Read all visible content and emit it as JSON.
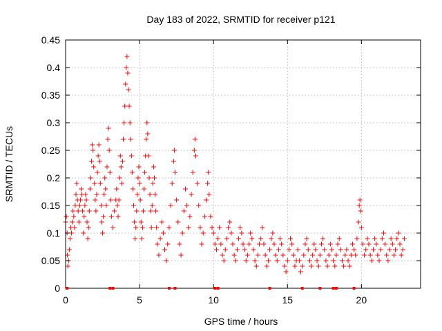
{
  "chart_data": {
    "type": "scatter",
    "title": "Day 183 of 2022, SRMTID for receiver p121",
    "xlabel": "GPS time / hours",
    "ylabel": "SRMTID / TECUs",
    "xlim": [
      0,
      24
    ],
    "ylim": [
      0,
      0.45
    ],
    "grid": true,
    "marker": "+",
    "color": "#ff0000",
    "x_ticks": [
      0,
      5,
      10,
      15,
      20
    ],
    "y_ticks": [
      0,
      0.05,
      0.1,
      0.15,
      0.2,
      0.25,
      0.3,
      0.35,
      0.4,
      0.45
    ],
    "series": [
      {
        "name": "SRMTID",
        "points": [
          [
            0.0,
            0.12
          ],
          [
            0.05,
            0.13
          ],
          [
            0.1,
            0.1
          ],
          [
            0.12,
            0.06
          ],
          [
            0.15,
            0.04
          ],
          [
            0.2,
            0.05
          ],
          [
            0.25,
            0.07
          ],
          [
            0.3,
            0.09
          ],
          [
            0.35,
            0.11
          ],
          [
            0.4,
            0.1
          ],
          [
            0.45,
            0.12
          ],
          [
            0.5,
            0.14
          ],
          [
            0.55,
            0.13
          ],
          [
            0.6,
            0.11
          ],
          [
            0.65,
            0.15
          ],
          [
            0.7,
            0.17
          ],
          [
            0.75,
            0.19
          ],
          [
            0.8,
            0.16
          ],
          [
            0.85,
            0.14
          ],
          [
            0.9,
            0.12
          ],
          [
            0.95,
            0.15
          ],
          [
            1.0,
            0.16
          ],
          [
            1.05,
            0.18
          ],
          [
            1.1,
            0.17
          ],
          [
            1.15,
            0.14
          ],
          [
            1.2,
            0.1
          ],
          [
            1.25,
            0.13
          ],
          [
            1.3,
            0.15
          ],
          [
            1.35,
            0.17
          ],
          [
            1.4,
            0.16
          ],
          [
            1.45,
            0.12
          ],
          [
            1.5,
            0.09
          ],
          [
            1.55,
            0.11
          ],
          [
            1.6,
            0.14
          ],
          [
            1.65,
            0.18
          ],
          [
            1.7,
            0.2
          ],
          [
            1.75,
            0.23
          ],
          [
            1.8,
            0.26
          ],
          [
            1.85,
            0.25
          ],
          [
            1.9,
            0.22
          ],
          [
            1.95,
            0.19
          ],
          [
            2.0,
            0.16
          ],
          [
            2.05,
            0.14
          ],
          [
            2.1,
            0.17
          ],
          [
            2.15,
            0.21
          ],
          [
            2.2,
            0.24
          ],
          [
            2.25,
            0.26
          ],
          [
            2.3,
            0.23
          ],
          [
            2.35,
            0.19
          ],
          [
            2.4,
            0.15
          ],
          [
            2.45,
            0.12
          ],
          [
            2.5,
            0.1
          ],
          [
            2.55,
            0.13
          ],
          [
            2.6,
            0.17
          ],
          [
            2.65,
            0.2
          ],
          [
            2.7,
            0.18
          ],
          [
            2.75,
            0.15
          ],
          [
            2.8,
            0.22
          ],
          [
            2.85,
            0.27
          ],
          [
            2.9,
            0.29
          ],
          [
            2.95,
            0.25
          ],
          [
            3.0,
            0.21
          ],
          [
            3.05,
            0.16
          ],
          [
            3.1,
            0.13
          ],
          [
            3.2,
            0.11
          ],
          [
            3.3,
            0.14
          ],
          [
            3.4,
            0.16
          ],
          [
            3.45,
            0.18
          ],
          [
            3.5,
            0.15
          ],
          [
            3.55,
            0.13
          ],
          [
            3.6,
            0.16
          ],
          [
            3.65,
            0.2
          ],
          [
            3.7,
            0.24
          ],
          [
            3.75,
            0.22
          ],
          [
            3.8,
            0.19
          ],
          [
            3.85,
            0.23
          ],
          [
            3.9,
            0.27
          ],
          [
            3.95,
            0.3
          ],
          [
            4.0,
            0.33
          ],
          [
            4.05,
            0.37
          ],
          [
            4.1,
            0.4
          ],
          [
            4.15,
            0.42
          ],
          [
            4.2,
            0.39
          ],
          [
            4.25,
            0.36
          ],
          [
            4.3,
            0.33
          ],
          [
            4.35,
            0.3
          ],
          [
            4.4,
            0.27
          ],
          [
            4.45,
            0.24
          ],
          [
            4.5,
            0.21
          ],
          [
            4.55,
            0.18
          ],
          [
            4.6,
            0.15
          ],
          [
            4.65,
            0.12
          ],
          [
            4.7,
            0.09
          ],
          [
            4.75,
            0.11
          ],
          [
            4.8,
            0.14
          ],
          [
            4.85,
            0.17
          ],
          [
            4.9,
            0.2
          ],
          [
            4.95,
            0.22
          ],
          [
            5.0,
            0.19
          ],
          [
            5.05,
            0.16
          ],
          [
            5.1,
            0.12
          ],
          [
            5.15,
            0.09
          ],
          [
            5.2,
            0.11
          ],
          [
            5.25,
            0.14
          ],
          [
            5.3,
            0.18
          ],
          [
            5.35,
            0.21
          ],
          [
            5.4,
            0.24
          ],
          [
            5.45,
            0.27
          ],
          [
            5.5,
            0.3
          ],
          [
            5.55,
            0.28
          ],
          [
            5.6,
            0.24
          ],
          [
            5.65,
            0.2
          ],
          [
            5.7,
            0.17
          ],
          [
            5.75,
            0.14
          ],
          [
            5.8,
            0.11
          ],
          [
            5.85,
            0.15
          ],
          [
            5.9,
            0.19
          ],
          [
            5.95,
            0.22
          ],
          [
            6.0,
            0.2
          ],
          [
            6.05,
            0.17
          ],
          [
            6.1,
            0.14
          ],
          [
            6.15,
            0.11
          ],
          [
            6.2,
            0.08
          ],
          [
            6.3,
            0.06
          ],
          [
            6.4,
            0.09
          ],
          [
            6.5,
            0.12
          ],
          [
            6.6,
            0.1
          ],
          [
            6.7,
            0.07
          ],
          [
            6.8,
            0.05
          ],
          [
            6.9,
            0.08
          ],
          [
            7.0,
            0.11
          ],
          [
            7.1,
            0.15
          ],
          [
            7.2,
            0.19
          ],
          [
            7.3,
            0.23
          ],
          [
            7.35,
            0.25
          ],
          [
            7.4,
            0.21
          ],
          [
            7.5,
            0.16
          ],
          [
            7.6,
            0.12
          ],
          [
            7.7,
            0.08
          ],
          [
            7.8,
            0.06
          ],
          [
            7.9,
            0.1
          ],
          [
            8.0,
            0.14
          ],
          [
            8.1,
            0.18
          ],
          [
            8.2,
            0.15
          ],
          [
            8.3,
            0.11
          ],
          [
            8.4,
            0.13
          ],
          [
            8.5,
            0.17
          ],
          [
            8.6,
            0.21
          ],
          [
            8.7,
            0.25
          ],
          [
            8.75,
            0.27
          ],
          [
            8.8,
            0.24
          ],
          [
            8.9,
            0.19
          ],
          [
            9.0,
            0.15
          ],
          [
            9.1,
            0.11
          ],
          [
            9.2,
            0.08
          ],
          [
            9.3,
            0.1
          ],
          [
            9.4,
            0.13
          ],
          [
            9.5,
            0.16
          ],
          [
            9.6,
            0.19
          ],
          [
            9.65,
            0.21
          ],
          [
            9.7,
            0.17
          ],
          [
            9.8,
            0.13
          ],
          [
            9.9,
            0.11
          ],
          [
            10.0,
            0.1
          ],
          [
            10.1,
            0.08
          ],
          [
            10.2,
            0.07
          ],
          [
            10.3,
            0.09
          ],
          [
            10.4,
            0.11
          ],
          [
            10.5,
            0.08
          ],
          [
            10.6,
            0.06
          ],
          [
            10.7,
            0.05
          ],
          [
            10.8,
            0.07
          ],
          [
            10.9,
            0.09
          ],
          [
            11.0,
            0.11
          ],
          [
            11.1,
            0.12
          ],
          [
            11.2,
            0.1
          ],
          [
            11.3,
            0.08
          ],
          [
            11.4,
            0.06
          ],
          [
            11.5,
            0.05
          ],
          [
            11.6,
            0.07
          ],
          [
            11.7,
            0.09
          ],
          [
            11.8,
            0.11
          ],
          [
            11.9,
            0.1
          ],
          [
            12.0,
            0.08
          ],
          [
            12.1,
            0.07
          ],
          [
            12.2,
            0.05
          ],
          [
            12.3,
            0.06
          ],
          [
            12.4,
            0.08
          ],
          [
            12.5,
            0.1
          ],
          [
            12.6,
            0.09
          ],
          [
            12.7,
            0.07
          ],
          [
            12.8,
            0.05
          ],
          [
            12.9,
            0.04
          ],
          [
            13.0,
            0.06
          ],
          [
            13.1,
            0.08
          ],
          [
            13.2,
            0.09
          ],
          [
            13.3,
            0.11
          ],
          [
            13.4,
            0.08
          ],
          [
            13.5,
            0.06
          ],
          [
            13.6,
            0.04
          ],
          [
            13.7,
            0.05
          ],
          [
            13.8,
            0.07
          ],
          [
            13.9,
            0.09
          ],
          [
            14.0,
            0.1
          ],
          [
            14.1,
            0.08
          ],
          [
            14.2,
            0.06
          ],
          [
            14.3,
            0.05
          ],
          [
            14.4,
            0.07
          ],
          [
            14.5,
            0.09
          ],
          [
            14.6,
            0.08
          ],
          [
            14.7,
            0.06
          ],
          [
            14.8,
            0.04
          ],
          [
            14.9,
            0.03
          ],
          [
            15.0,
            0.05
          ],
          [
            15.1,
            0.07
          ],
          [
            15.2,
            0.09
          ],
          [
            15.3,
            0.08
          ],
          [
            15.4,
            0.06
          ],
          [
            15.5,
            0.04
          ],
          [
            15.6,
            0.05
          ],
          [
            15.7,
            0.07
          ],
          [
            15.8,
            0.05
          ],
          [
            15.9,
            0.03
          ],
          [
            16.0,
            0.04
          ],
          [
            16.1,
            0.06
          ],
          [
            16.2,
            0.08
          ],
          [
            16.3,
            0.09
          ],
          [
            16.4,
            0.07
          ],
          [
            16.5,
            0.05
          ],
          [
            16.6,
            0.04
          ],
          [
            16.7,
            0.06
          ],
          [
            16.8,
            0.08
          ],
          [
            16.9,
            0.07
          ],
          [
            17.0,
            0.05
          ],
          [
            17.1,
            0.04
          ],
          [
            17.2,
            0.06
          ],
          [
            17.3,
            0.08
          ],
          [
            17.4,
            0.09
          ],
          [
            17.5,
            0.07
          ],
          [
            17.6,
            0.05
          ],
          [
            17.7,
            0.04
          ],
          [
            17.8,
            0.06
          ],
          [
            17.9,
            0.08
          ],
          [
            18.0,
            0.07
          ],
          [
            18.1,
            0.05
          ],
          [
            18.2,
            0.04
          ],
          [
            18.3,
            0.06
          ],
          [
            18.4,
            0.08
          ],
          [
            18.5,
            0.09
          ],
          [
            18.6,
            0.07
          ],
          [
            18.7,
            0.05
          ],
          [
            18.8,
            0.04
          ],
          [
            18.9,
            0.06
          ],
          [
            19.0,
            0.07
          ],
          [
            19.1,
            0.05
          ],
          [
            19.2,
            0.04
          ],
          [
            19.3,
            0.06
          ],
          [
            19.4,
            0.08
          ],
          [
            19.5,
            0.07
          ],
          [
            19.6,
            0.06
          ],
          [
            19.7,
            0.09
          ],
          [
            19.8,
            0.12
          ],
          [
            19.85,
            0.15
          ],
          [
            19.9,
            0.16
          ],
          [
            19.95,
            0.14
          ],
          [
            20.0,
            0.11
          ],
          [
            20.1,
            0.08
          ],
          [
            20.2,
            0.06
          ],
          [
            20.3,
            0.07
          ],
          [
            20.4,
            0.09
          ],
          [
            20.5,
            0.08
          ],
          [
            20.6,
            0.06
          ],
          [
            20.7,
            0.05
          ],
          [
            20.8,
            0.07
          ],
          [
            20.9,
            0.09
          ],
          [
            21.0,
            0.08
          ],
          [
            21.1,
            0.06
          ],
          [
            21.2,
            0.05
          ],
          [
            21.3,
            0.07
          ],
          [
            21.4,
            0.09
          ],
          [
            21.5,
            0.1
          ],
          [
            21.6,
            0.08
          ],
          [
            21.7,
            0.06
          ],
          [
            21.8,
            0.05
          ],
          [
            21.9,
            0.07
          ],
          [
            22.0,
            0.09
          ],
          [
            22.1,
            0.08
          ],
          [
            22.2,
            0.06
          ],
          [
            22.3,
            0.07
          ],
          [
            22.4,
            0.09
          ],
          [
            22.5,
            0.1
          ],
          [
            22.6,
            0.08
          ],
          [
            22.7,
            0.06
          ],
          [
            22.8,
            0.07
          ],
          [
            22.9,
            0.09
          ]
        ]
      }
    ],
    "baseline_markers_x": [
      0.1,
      3.0,
      3.2,
      7.0,
      7.4,
      10.1,
      10.3,
      13.8,
      16.0,
      17.2,
      18.1,
      18.3,
      19.5
    ]
  }
}
